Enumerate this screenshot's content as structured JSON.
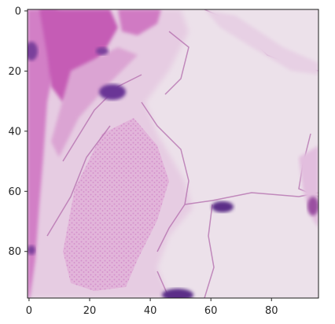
{
  "image": {
    "kind": "histology-tissue-patch",
    "stain": "H&E",
    "grid_size": [
      96,
      96
    ],
    "colors": {
      "background": "#ece1ea",
      "pale_tissue": "#e4c8e0",
      "pink_fiber": "#d48ac8",
      "dense_pink": "#c45fb3",
      "nucleus": "#5b2d88",
      "border": "#1a1a1a"
    }
  },
  "axes": {
    "xlim": [
      -0.5,
      95.5
    ],
    "ylim": [
      95.5,
      -0.5
    ],
    "x_ticks": [
      0,
      20,
      40,
      60,
      80
    ],
    "y_ticks": [
      0,
      20,
      40,
      60,
      80
    ],
    "x_tick_labels": [
      "0",
      "20",
      "40",
      "60",
      "80"
    ],
    "y_tick_labels": [
      "0",
      "20",
      "40",
      "60",
      "80"
    ]
  }
}
